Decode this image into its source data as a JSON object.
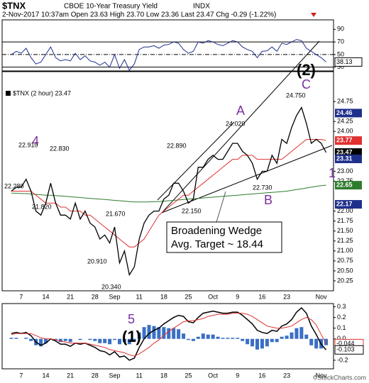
{
  "header": {
    "symbol": "$TNX",
    "name": "CBOE 10-Year Treasury Yield",
    "exchange": "INDX",
    "quote": "2-Nov-2017 10:37am   Open 23.63  High 23.70  Low 23.36  Last 23.47  Chg -0.29 (-1.22%)",
    "watermark": "©StockCharts.com"
  },
  "chart_data": [
    {
      "type": "line",
      "name": "rsi",
      "values": [
        50,
        55,
        52,
        60,
        45,
        35,
        38,
        50,
        62,
        45,
        40,
        42,
        40,
        52,
        42,
        48,
        40,
        38,
        33,
        38,
        30,
        50,
        28,
        42,
        25,
        35,
        58,
        62,
        62,
        64,
        60,
        65,
        66,
        70,
        68,
        58,
        52,
        55,
        70,
        68,
        72,
        70,
        66,
        64,
        68,
        72,
        70,
        62,
        58,
        55,
        45,
        55,
        56,
        62,
        55,
        68,
        66,
        70,
        74,
        72,
        60,
        55,
        50,
        45,
        38.13
      ],
      "color": "#1f2f8c",
      "ylim": [
        24,
        105
      ],
      "yticks": [
        90,
        70,
        50,
        30
      ],
      "levels": [
        70,
        30
      ],
      "midline": 50,
      "last_value": 38.13
    },
    {
      "type": "line",
      "name": "price",
      "categories": [
        null,
        null,
        "7",
        null,
        null,
        null,
        null,
        "14",
        null,
        null,
        null,
        null,
        "21",
        null,
        null,
        null,
        null,
        "28",
        null,
        null,
        null,
        "Sep",
        null,
        null,
        null,
        null,
        "11",
        null,
        null,
        null,
        null,
        "18",
        null,
        null,
        null,
        null,
        "25",
        null,
        null,
        null,
        null,
        "Oct",
        null,
        null,
        null,
        null,
        "9",
        null,
        null,
        null,
        null,
        "16",
        null,
        null,
        null,
        null,
        "23",
        null,
        null,
        null,
        null,
        null,
        null,
        "Nov",
        null
      ],
      "series": [
        {
          "name": "$TNX (2 hour) 23.47",
          "color": "#000000",
          "values": [
            22.5,
            22.6,
            22.6,
            22.8,
            22.5,
            22.0,
            21.9,
            22.2,
            22.7,
            22.2,
            21.9,
            21.9,
            21.8,
            22.2,
            21.8,
            22.0,
            21.7,
            21.6,
            21.3,
            21.4,
            21.2,
            21.6,
            20.7,
            21.0,
            20.4,
            20.6,
            21.3,
            21.7,
            21.9,
            22.0,
            22.0,
            22.3,
            22.4,
            22.7,
            22.7,
            22.5,
            22.2,
            22.3,
            23.1,
            23.1,
            23.3,
            23.4,
            23.3,
            23.3,
            23.5,
            23.7,
            23.7,
            23.5,
            23.4,
            23.2,
            22.8,
            23.0,
            23.0,
            23.4,
            23.2,
            23.8,
            23.7,
            24.1,
            24.4,
            24.6,
            24.2,
            23.7,
            23.8,
            23.7,
            23.47
          ]
        },
        {
          "color": "#e03030",
          "values": [
            22.5,
            22.5,
            22.5,
            22.5,
            22.5,
            22.4,
            22.3,
            22.2,
            22.2,
            22.2,
            22.1,
            22.1,
            22.0,
            22.0,
            22.0,
            21.9,
            21.9,
            21.8,
            21.7,
            21.6,
            21.5,
            21.4,
            21.3,
            21.2,
            21.1,
            21.1,
            21.2,
            21.3,
            21.5,
            21.7,
            21.9,
            22.0,
            22.1,
            22.2,
            22.3,
            22.4,
            22.4,
            22.5,
            22.6,
            22.7,
            22.8,
            22.9,
            23.0,
            23.1,
            23.2,
            23.3,
            23.3,
            23.4,
            23.4,
            23.4,
            23.3,
            23.3,
            23.3,
            23.3,
            23.3,
            23.3,
            23.4,
            23.5,
            23.6,
            23.7,
            23.8,
            23.8,
            23.8,
            23.8,
            23.77
          ]
        },
        {
          "color": "#2e7d2e",
          "values": [
            22.45,
            22.45,
            22.44,
            22.44,
            22.43,
            22.42,
            22.41,
            22.4,
            22.4,
            22.39,
            22.38,
            22.37,
            22.36,
            22.35,
            22.34,
            22.33,
            22.32,
            22.31,
            22.3,
            22.29,
            22.28,
            22.27,
            22.26,
            22.25,
            22.24,
            22.23,
            22.23,
            22.23,
            22.23,
            22.24,
            22.24,
            22.25,
            22.26,
            22.27,
            22.28,
            22.29,
            22.3,
            22.31,
            22.32,
            22.33,
            22.34,
            22.35,
            22.36,
            22.37,
            22.38,
            22.39,
            22.4,
            22.41,
            22.42,
            22.43,
            22.44,
            22.45,
            22.46,
            22.47,
            22.48,
            22.49,
            22.5,
            22.52,
            22.54,
            22.56,
            22.58,
            22.6,
            22.62,
            22.64,
            22.65
          ]
        }
      ],
      "ylim": [
        20.0,
        25.5
      ],
      "yticks": [
        {
          "value": 24.75,
          "label": "24.75"
        },
        {
          "value": 24.25,
          "label": "24.25"
        },
        {
          "value": 24,
          "label": "24.00"
        },
        {
          "value": 23,
          "label": "23.00"
        },
        {
          "value": 22.75,
          "label": "22.75"
        },
        {
          "value": 22,
          "label": "22.00"
        },
        {
          "value": 21.75,
          "label": "21.75"
        },
        {
          "value": 21.5,
          "label": "21.50"
        },
        {
          "value": 21.25,
          "label": "21.25"
        },
        {
          "value": 21,
          "label": "21.00"
        },
        {
          "value": 20.75,
          "label": "20.75"
        },
        {
          "value": 20.5,
          "label": "20.50"
        },
        {
          "value": 20.25,
          "label": "20.25"
        }
      ],
      "price_labels": [
        {
          "value": 24.46,
          "color": "#1f2f8c"
        },
        {
          "value": 23.77,
          "color": "#e03030"
        },
        {
          "value": 23.47,
          "color": "#000000"
        },
        {
          "value": 23.31,
          "color": "#1f2f8c"
        },
        {
          "value": 22.65,
          "color": "#2e7d2e"
        },
        {
          "value": 22.17,
          "color": "#1f2f8c"
        }
      ],
      "annotations": [
        "(2)",
        "C",
        "A",
        "B",
        "1",
        "4",
        "22.910",
        "22.830",
        "22.280",
        "21.820",
        "21.670",
        "20.910",
        "20.340",
        "22.890",
        "22.150",
        "24.020",
        "22.730",
        "24.750"
      ],
      "wedge_note": [
        "Broadening Wedge",
        "Avg. Target ~ 18.44"
      ]
    },
    {
      "type": "macd",
      "name": "macd",
      "series": [
        {
          "color": "#000000",
          "values": [
            0.05,
            0.06,
            0.05,
            0.06,
            0.03,
            -0.03,
            -0.06,
            -0.04,
            0.0,
            -0.02,
            -0.05,
            -0.05,
            -0.07,
            -0.04,
            -0.05,
            -0.04,
            -0.06,
            -0.08,
            -0.11,
            -0.12,
            -0.15,
            -0.12,
            -0.17,
            -0.16,
            -0.2,
            -0.18,
            -0.08,
            0.0,
            0.05,
            0.08,
            0.1,
            0.14,
            0.17,
            0.2,
            0.22,
            0.21,
            0.16,
            0.15,
            0.2,
            0.24,
            0.25,
            0.26,
            0.25,
            0.24,
            0.24,
            0.25,
            0.25,
            0.22,
            0.18,
            0.14,
            0.08,
            0.06,
            0.05,
            0.08,
            0.07,
            0.12,
            0.14,
            0.18,
            0.25,
            0.29,
            0.24,
            0.12,
            0.04,
            -0.05,
            -0.103
          ]
        },
        {
          "color": "#e03030",
          "values": [
            0.04,
            0.05,
            0.05,
            0.05,
            0.05,
            0.03,
            0.01,
            0.0,
            0.0,
            -0.01,
            -0.02,
            -0.03,
            -0.04,
            -0.04,
            -0.04,
            -0.04,
            -0.05,
            -0.06,
            -0.07,
            -0.08,
            -0.1,
            -0.11,
            -0.12,
            -0.13,
            -0.15,
            -0.16,
            -0.14,
            -0.11,
            -0.08,
            -0.04,
            -0.01,
            0.03,
            0.07,
            0.1,
            0.13,
            0.16,
            0.17,
            0.17,
            0.18,
            0.19,
            0.21,
            0.22,
            0.23,
            0.23,
            0.23,
            0.24,
            0.24,
            0.24,
            0.23,
            0.21,
            0.18,
            0.15,
            0.12,
            0.11,
            0.1,
            0.1,
            0.11,
            0.12,
            0.15,
            0.18,
            0.2,
            0.18,
            0.13,
            0.04,
            -0.044
          ]
        }
      ],
      "histogram": [
        0.01,
        0.01,
        0,
        0.01,
        -0.02,
        -0.06,
        -0.07,
        -0.04,
        0,
        -0.01,
        -0.03,
        -0.02,
        -0.03,
        0,
        -0.01,
        0,
        -0.01,
        -0.02,
        -0.04,
        -0.04,
        -0.05,
        -0.01,
        -0.05,
        -0.03,
        -0.05,
        -0.02,
        0.06,
        0.11,
        0.13,
        0.12,
        0.11,
        0.11,
        0.1,
        0.1,
        0.09,
        0.05,
        -0.01,
        -0.02,
        0.02,
        0.05,
        0.04,
        0.04,
        0.02,
        0.01,
        0.01,
        0.01,
        0.01,
        -0.02,
        -0.05,
        -0.07,
        -0.1,
        -0.09,
        -0.07,
        -0.03,
        -0.03,
        0.02,
        0.03,
        0.06,
        0.1,
        0.11,
        0.04,
        -0.06,
        -0.09,
        -0.09,
        -0.059
      ],
      "histogram_color": "#3a6fc4",
      "ylim": [
        -0.28,
        0.33
      ],
      "yticks": [
        0.3,
        0.2,
        0.1,
        {
          "value": 0,
          "label": "0.0"
        },
        -0.2
      ],
      "annotations": [
        "5",
        "(1)"
      ]
    }
  ]
}
